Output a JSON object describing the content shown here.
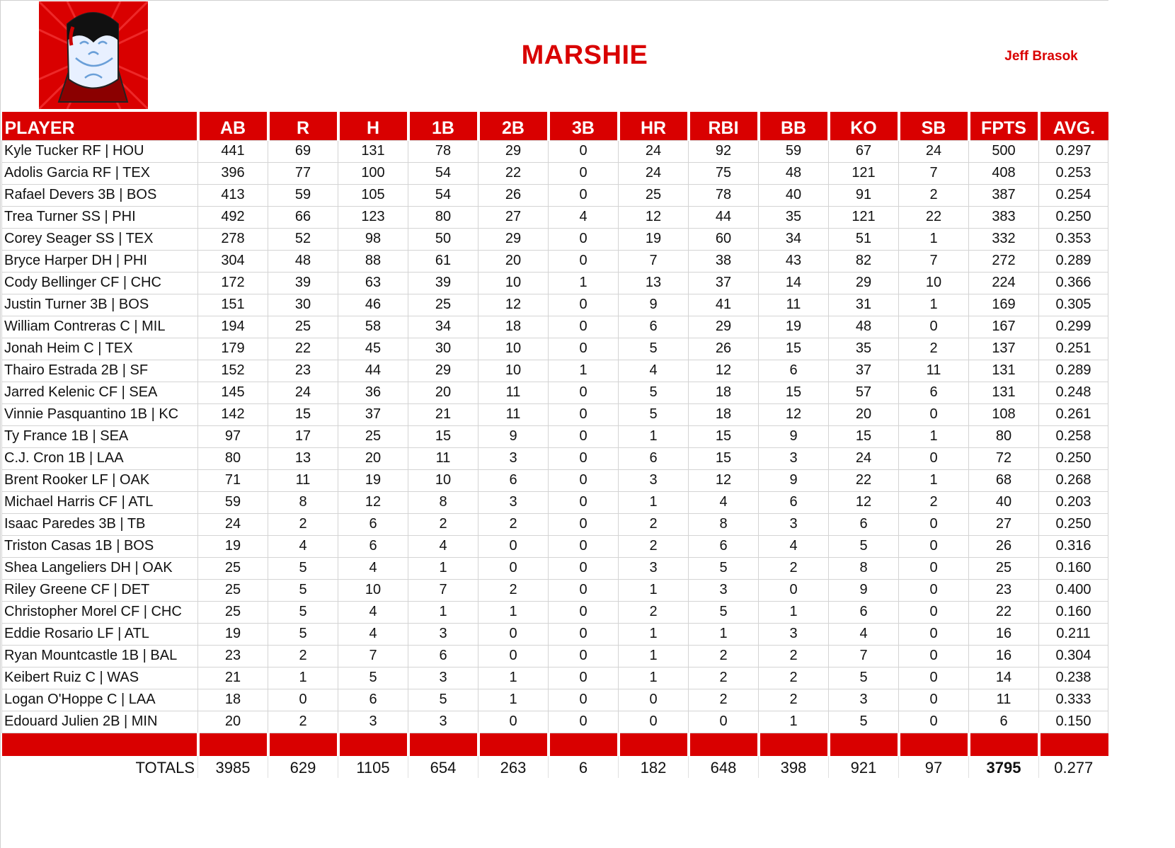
{
  "header": {
    "team_name": "MARSHIE",
    "manager_name": "Jeff Brasok",
    "logo": "vampire-avatar-icon"
  },
  "colors": {
    "accent": "#d90000",
    "header_text": "#ffffff",
    "gridline": "#d4d4d4"
  },
  "table": {
    "columns": [
      "PLAYER",
      "AB",
      "R",
      "H",
      "1B",
      "2B",
      "3B",
      "HR",
      "RBI",
      "BB",
      "KO",
      "SB",
      "FPTS",
      "AVG."
    ],
    "rows": [
      [
        "Kyle Tucker RF | HOU",
        "441",
        "69",
        "131",
        "78",
        "29",
        "0",
        "24",
        "92",
        "59",
        "67",
        "24",
        "500",
        "0.297"
      ],
      [
        "Adolis Garcia RF | TEX",
        "396",
        "77",
        "100",
        "54",
        "22",
        "0",
        "24",
        "75",
        "48",
        "121",
        "7",
        "408",
        "0.253"
      ],
      [
        "Rafael Devers 3B | BOS",
        "413",
        "59",
        "105",
        "54",
        "26",
        "0",
        "25",
        "78",
        "40",
        "91",
        "2",
        "387",
        "0.254"
      ],
      [
        "Trea Turner SS | PHI",
        "492",
        "66",
        "123",
        "80",
        "27",
        "4",
        "12",
        "44",
        "35",
        "121",
        "22",
        "383",
        "0.250"
      ],
      [
        "Corey Seager SS | TEX",
        "278",
        "52",
        "98",
        "50",
        "29",
        "0",
        "19",
        "60",
        "34",
        "51",
        "1",
        "332",
        "0.353"
      ],
      [
        "Bryce Harper DH | PHI",
        "304",
        "48",
        "88",
        "61",
        "20",
        "0",
        "7",
        "38",
        "43",
        "82",
        "7",
        "272",
        "0.289"
      ],
      [
        "Cody Bellinger CF | CHC",
        "172",
        "39",
        "63",
        "39",
        "10",
        "1",
        "13",
        "37",
        "14",
        "29",
        "10",
        "224",
        "0.366"
      ],
      [
        "Justin Turner 3B | BOS",
        "151",
        "30",
        "46",
        "25",
        "12",
        "0",
        "9",
        "41",
        "11",
        "31",
        "1",
        "169",
        "0.305"
      ],
      [
        "William Contreras C | MIL",
        "194",
        "25",
        "58",
        "34",
        "18",
        "0",
        "6",
        "29",
        "19",
        "48",
        "0",
        "167",
        "0.299"
      ],
      [
        "Jonah Heim C | TEX",
        "179",
        "22",
        "45",
        "30",
        "10",
        "0",
        "5",
        "26",
        "15",
        "35",
        "2",
        "137",
        "0.251"
      ],
      [
        "Thairo Estrada 2B | SF",
        "152",
        "23",
        "44",
        "29",
        "10",
        "1",
        "4",
        "12",
        "6",
        "37",
        "11",
        "131",
        "0.289"
      ],
      [
        "Jarred Kelenic CF | SEA",
        "145",
        "24",
        "36",
        "20",
        "11",
        "0",
        "5",
        "18",
        "15",
        "57",
        "6",
        "131",
        "0.248"
      ],
      [
        "Vinnie Pasquantino 1B | KC",
        "142",
        "15",
        "37",
        "21",
        "11",
        "0",
        "5",
        "18",
        "12",
        "20",
        "0",
        "108",
        "0.261"
      ],
      [
        "Ty France 1B | SEA",
        "97",
        "17",
        "25",
        "15",
        "9",
        "0",
        "1",
        "15",
        "9",
        "15",
        "1",
        "80",
        "0.258"
      ],
      [
        "C.J. Cron 1B | LAA",
        "80",
        "13",
        "20",
        "11",
        "3",
        "0",
        "6",
        "15",
        "3",
        "24",
        "0",
        "72",
        "0.250"
      ],
      [
        "Brent Rooker LF | OAK",
        "71",
        "11",
        "19",
        "10",
        "6",
        "0",
        "3",
        "12",
        "9",
        "22",
        "1",
        "68",
        "0.268"
      ],
      [
        "Michael Harris CF | ATL",
        "59",
        "8",
        "12",
        "8",
        "3",
        "0",
        "1",
        "4",
        "6",
        "12",
        "2",
        "40",
        "0.203"
      ],
      [
        "Isaac Paredes 3B | TB",
        "24",
        "2",
        "6",
        "2",
        "2",
        "0",
        "2",
        "8",
        "3",
        "6",
        "0",
        "27",
        "0.250"
      ],
      [
        "Triston Casas 1B | BOS",
        "19",
        "4",
        "6",
        "4",
        "0",
        "0",
        "2",
        "6",
        "4",
        "5",
        "0",
        "26",
        "0.316"
      ],
      [
        "Shea Langeliers DH | OAK",
        "25",
        "5",
        "4",
        "1",
        "0",
        "0",
        "3",
        "5",
        "2",
        "8",
        "0",
        "25",
        "0.160"
      ],
      [
        "Riley Greene CF | DET",
        "25",
        "5",
        "10",
        "7",
        "2",
        "0",
        "1",
        "3",
        "0",
        "9",
        "0",
        "23",
        "0.400"
      ],
      [
        "Christopher Morel CF | CHC",
        "25",
        "5",
        "4",
        "1",
        "1",
        "0",
        "2",
        "5",
        "1",
        "6",
        "0",
        "22",
        "0.160"
      ],
      [
        "Eddie Rosario LF | ATL",
        "19",
        "5",
        "4",
        "3",
        "0",
        "0",
        "1",
        "1",
        "3",
        "4",
        "0",
        "16",
        "0.211"
      ],
      [
        "Ryan Mountcastle 1B | BAL",
        "23",
        "2",
        "7",
        "6",
        "0",
        "0",
        "1",
        "2",
        "2",
        "7",
        "0",
        "16",
        "0.304"
      ],
      [
        "Keibert Ruiz C | WAS",
        "21",
        "1",
        "5",
        "3",
        "1",
        "0",
        "1",
        "2",
        "2",
        "5",
        "0",
        "14",
        "0.238"
      ],
      [
        "Logan O'Hoppe C | LAA",
        "18",
        "0",
        "6",
        "5",
        "1",
        "0",
        "0",
        "2",
        "2",
        "3",
        "0",
        "11",
        "0.333"
      ],
      [
        "Edouard Julien 2B | MIN",
        "20",
        "2",
        "3",
        "3",
        "0",
        "0",
        "0",
        "0",
        "1",
        "5",
        "0",
        "6",
        "0.150"
      ]
    ],
    "totals": [
      "TOTALS",
      "3985",
      "629",
      "1105",
      "654",
      "263",
      "6",
      "182",
      "648",
      "398",
      "921",
      "97",
      "3795",
      "0.277"
    ]
  }
}
